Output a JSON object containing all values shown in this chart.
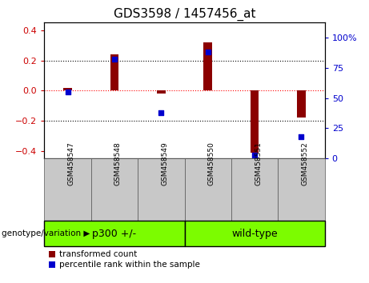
{
  "title": "GDS3598 / 1457456_at",
  "samples": [
    "GSM458547",
    "GSM458548",
    "GSM458549",
    "GSM458550",
    "GSM458551",
    "GSM458552"
  ],
  "transformed_counts": [
    0.02,
    0.24,
    -0.02,
    0.32,
    -0.41,
    -0.18
  ],
  "percentile_ranks": [
    55,
    82,
    38,
    88,
    3,
    18
  ],
  "group_label_prefix": "genotype/variation",
  "group_configs": [
    {
      "start": 0,
      "end": 2,
      "label": "p300 +/-"
    },
    {
      "start": 3,
      "end": 5,
      "label": "wild-type"
    }
  ],
  "bar_color": "#8B0000",
  "dot_color": "#0000CD",
  "ylim_left": [
    -0.45,
    0.45
  ],
  "ylim_right": [
    0,
    112.5
  ],
  "yticks_left": [
    -0.4,
    -0.2,
    0.0,
    0.2,
    0.4
  ],
  "yticks_right": [
    0,
    25,
    50,
    75,
    100
  ],
  "hline_y": 0.0,
  "dotted_lines": [
    -0.2,
    0.2
  ],
  "background_label": "#C8C8C8",
  "background_group": "#7CFC00",
  "tick_label_color_left": "#CC0000",
  "tick_label_color_right": "#0000CD",
  "legend_items": [
    "transformed count",
    "percentile rank within the sample"
  ],
  "bar_width": 0.18,
  "dot_size": 22
}
